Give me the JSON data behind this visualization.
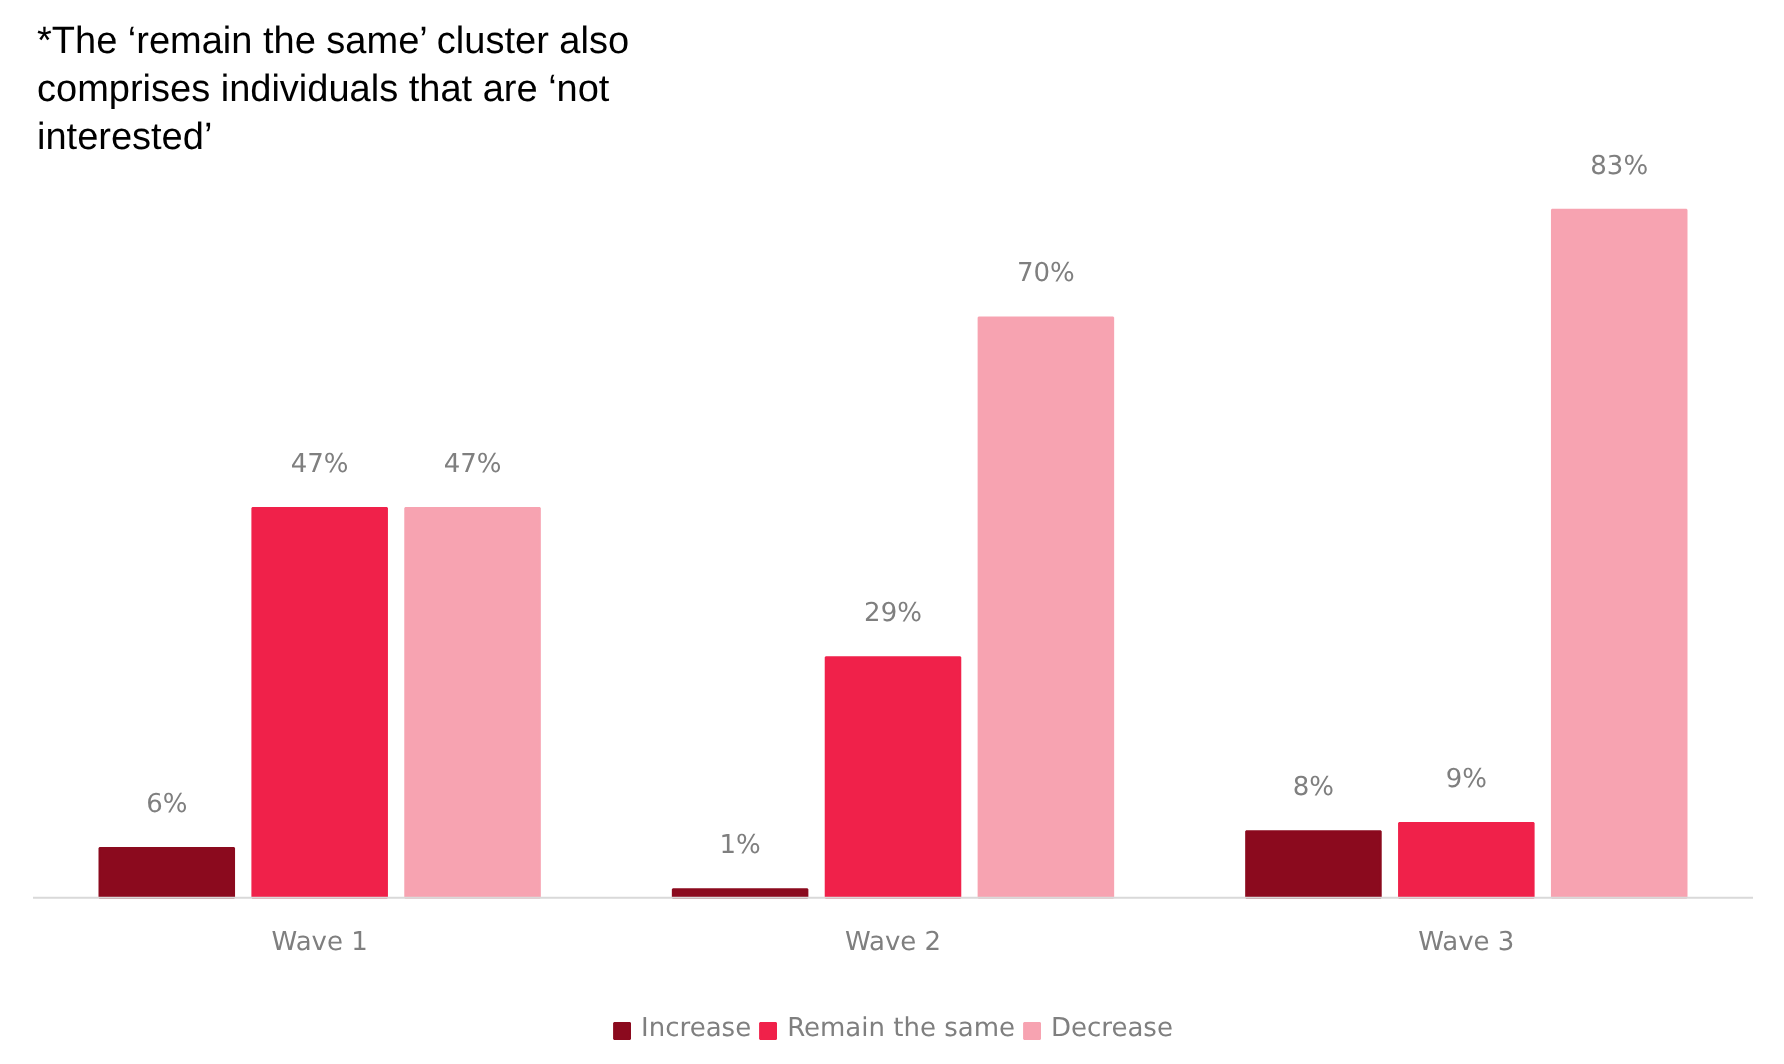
{
  "chart_data": {
    "type": "bar",
    "categories": [
      "Wave 1",
      "Wave 2",
      "Wave 3"
    ],
    "series": [
      {
        "name": "Increase",
        "color": "#8b0a1e",
        "values": [
          6,
          1,
          8
        ],
        "value_labels": [
          "6%",
          "1%",
          "8%"
        ]
      },
      {
        "name": "Remain the same",
        "color": "#f0214a",
        "values": [
          47,
          29,
          9
        ],
        "value_labels": [
          "47%",
          "29%",
          "9%"
        ]
      },
      {
        "name": "Decrease",
        "color": "#f7a3b1",
        "values": [
          47,
          70,
          83
        ],
        "value_labels": [
          "47%",
          "70%",
          "83%"
        ]
      }
    ],
    "annotations": [
      "*The ‘remain the same’ cluster also comprises individuals that are ‘not interested’"
    ],
    "legend": "bottom"
  }
}
